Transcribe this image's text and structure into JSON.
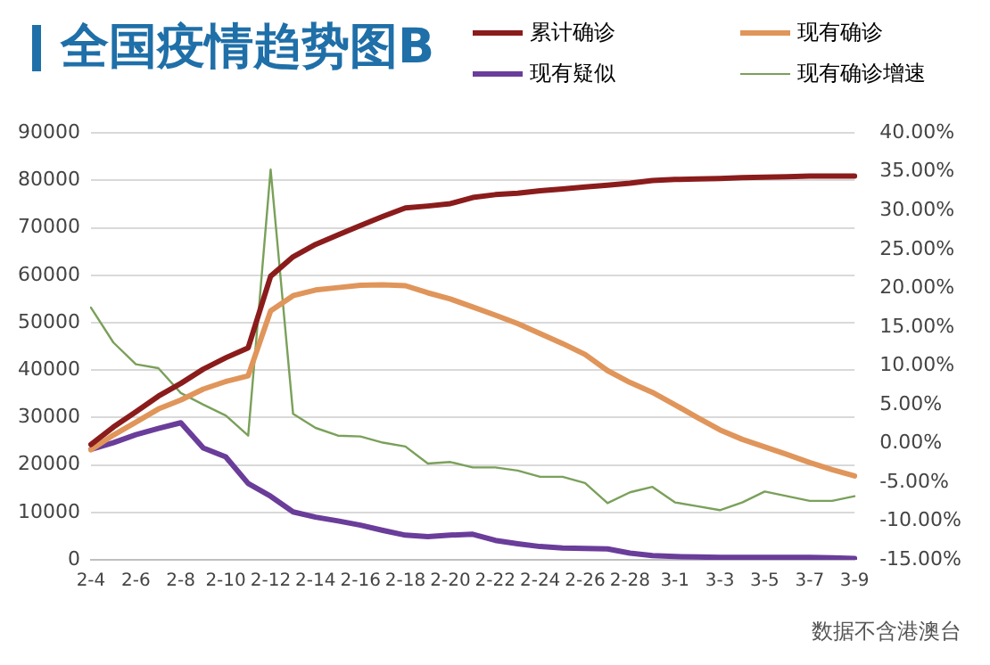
{
  "chart_data": {
    "type": "line",
    "title": "全国疫情趋势图B",
    "categories": [
      "2-4",
      null,
      "2-6",
      null,
      "2-8",
      null,
      "2-10",
      null,
      "2-12",
      null,
      "2-14",
      null,
      "2-16",
      null,
      "2-18",
      null,
      "2-20",
      null,
      "2-22",
      null,
      "2-24",
      null,
      "2-26",
      null,
      "2-28",
      null,
      "3-1",
      null,
      "3-3",
      null,
      "3-5",
      null,
      "3-7",
      null,
      "3-9"
    ],
    "series": [
      {
        "name": "累计确诊",
        "color": "#8b1c1c",
        "values": [
          24300,
          28000,
          31200,
          34500,
          37200,
          40200,
          42600,
          44700,
          59800,
          63900,
          66500,
          68500,
          70500,
          72400,
          74200,
          74600,
          75100,
          76400,
          77000,
          77300,
          77800,
          78200,
          78600,
          79000,
          79400,
          80000,
          80200,
          80300,
          80400,
          80600,
          80700,
          80800,
          80900,
          80900,
          80900
        ]
      },
      {
        "name": "现有确诊",
        "color": "#e0955a",
        "values": [
          23200,
          26300,
          29000,
          31800,
          33700,
          36000,
          37600,
          38800,
          52500,
          55700,
          56900,
          57400,
          57900,
          58000,
          57800,
          56300,
          55000,
          53300,
          51600,
          49800,
          47700,
          45600,
          43300,
          39900,
          37400,
          35300,
          32700,
          30000,
          27400,
          25400,
          23800,
          22200,
          20500,
          19000,
          17700
        ]
      },
      {
        "name": "现有疑似",
        "color": "#6a3d9a",
        "values": [
          23300,
          24700,
          26400,
          27700,
          28900,
          23600,
          21700,
          16100,
          13400,
          10100,
          9000,
          8200,
          7300,
          6200,
          5200,
          4900,
          5200,
          5400,
          4100,
          3400,
          2800,
          2500,
          2400,
          2300,
          1400,
          900,
          700,
          600,
          500,
          500,
          500,
          500,
          500,
          400,
          300
        ]
      },
      {
        "name": "现有确诊增速",
        "color": "#7aa05a",
        "axis": "y2",
        "values": [
          17.5,
          13,
          10.2,
          9.7,
          6.5,
          5,
          3.6,
          1,
          35.3,
          3.8,
          2,
          1,
          0.9,
          0.1,
          -0.4,
          -2.6,
          -2.4,
          -3.1,
          -3.1,
          -3.5,
          -4.3,
          -4.3,
          -5.1,
          -7.7,
          -6.3,
          -5.6,
          -7.6,
          -8.1,
          -8.6,
          -7.6,
          -6.2,
          -6.8,
          -7.4,
          -7.4,
          -6.8
        ]
      }
    ],
    "ylim": [
      0,
      90000
    ],
    "yticks": [
      0,
      10000,
      20000,
      30000,
      40000,
      50000,
      60000,
      70000,
      80000,
      90000
    ],
    "y2lim": [
      -15,
      40
    ],
    "y2ticks": [
      {
        "value": -15,
        "label": "-15.00%"
      },
      {
        "value": -10,
        "label": "-10.00%"
      },
      {
        "value": -5,
        "label": "-5.00%"
      },
      {
        "value": 0,
        "label": "0.00%"
      },
      {
        "value": 5,
        "label": "5.00%"
      },
      {
        "value": 10,
        "label": "10.00%"
      },
      {
        "value": 15,
        "label": "15.00%"
      },
      {
        "value": 20,
        "label": "20.00%"
      },
      {
        "value": 25,
        "label": "25.00%"
      },
      {
        "value": 30,
        "label": "30.00%"
      },
      {
        "value": 35,
        "label": "35.00%"
      },
      {
        "value": 40,
        "label": "40.00%"
      }
    ],
    "grid": "y",
    "legend": "top right",
    "marker": "none",
    "annotations": [
      "数据不含港澳台"
    ]
  }
}
